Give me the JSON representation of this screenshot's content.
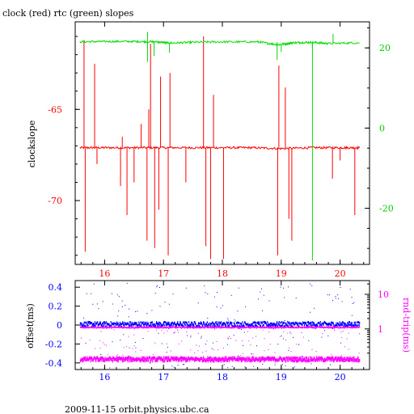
{
  "title": "clock (red) rtc (green) slopes",
  "footer": "2009-11-15  orbit.physics.ubc.ca",
  "colors": {
    "clock": "#ff0000",
    "rtc": "#00dd00",
    "offset": "#0000ff",
    "roundtrip": "#ff00ff",
    "axis": "#000000"
  },
  "chart_data": [
    {
      "type": "line",
      "title": "clock (red) rtc (green) slopes",
      "ylabel": "clockslope",
      "ylim": [
        -73.5,
        -60.2
      ],
      "yticks": [
        -65,
        -70
      ],
      "y2lim": [
        -34,
        26.5
      ],
      "y2ticks": [
        20,
        0,
        -20
      ],
      "xlim": [
        15.5,
        20.5
      ],
      "xticks": [
        16,
        17,
        18,
        19,
        20
      ],
      "grid": false,
      "series": [
        {
          "name": "clock",
          "axis": "left",
          "color": "#ff0000",
          "x": [
            15.58,
            16.0,
            16.5,
            17.0,
            17.5,
            18.0,
            18.5,
            19.0,
            19.5,
            20.0,
            20.33
          ],
          "values": [
            -67.1,
            -67.1,
            -67.1,
            -67.1,
            -67.1,
            -67.1,
            -67.1,
            -67.15,
            -67.1,
            -67.1,
            -67.1
          ],
          "spikes": [
            {
              "x": 15.65,
              "y": -61.2
            },
            {
              "x": 15.67,
              "y": -72.8
            },
            {
              "x": 15.83,
              "y": -62.5
            },
            {
              "x": 15.87,
              "y": -68.0
            },
            {
              "x": 16.27,
              "y": -69.2
            },
            {
              "x": 16.3,
              "y": -66.5
            },
            {
              "x": 16.38,
              "y": -70.8
            },
            {
              "x": 16.5,
              "y": -69.0
            },
            {
              "x": 16.62,
              "y": -65.8
            },
            {
              "x": 16.72,
              "y": -72.2
            },
            {
              "x": 16.75,
              "y": -65.0
            },
            {
              "x": 16.78,
              "y": -61.4
            },
            {
              "x": 16.85,
              "y": -72.6
            },
            {
              "x": 16.92,
              "y": -70.5
            },
            {
              "x": 16.95,
              "y": -63.2
            },
            {
              "x": 17.08,
              "y": -73.0
            },
            {
              "x": 17.11,
              "y": -63.0
            },
            {
              "x": 17.38,
              "y": -69.0
            },
            {
              "x": 17.68,
              "y": -61.0
            },
            {
              "x": 17.72,
              "y": -72.5
            },
            {
              "x": 17.8,
              "y": -73.2
            },
            {
              "x": 17.85,
              "y": -64.2
            },
            {
              "x": 18.02,
              "y": -73.2
            },
            {
              "x": 18.94,
              "y": -73.0
            },
            {
              "x": 18.96,
              "y": -62.6
            },
            {
              "x": 19.07,
              "y": -63.8
            },
            {
              "x": 19.13,
              "y": -71.0
            },
            {
              "x": 19.18,
              "y": -72.2
            },
            {
              "x": 19.87,
              "y": -68.8
            },
            {
              "x": 20.0,
              "y": -67.8
            },
            {
              "x": 20.25,
              "y": -70.8
            }
          ]
        },
        {
          "name": "rtc",
          "axis": "right",
          "color": "#00dd00",
          "x": [
            15.58,
            16.0,
            16.5,
            16.9,
            17.1,
            17.5,
            18.0,
            18.6,
            18.95,
            19.2,
            19.5,
            19.8,
            20.33
          ],
          "values": [
            21.5,
            21.6,
            21.6,
            21.5,
            21.2,
            21.4,
            21.5,
            21.5,
            20.8,
            21.3,
            21.4,
            21.1,
            21.3
          ],
          "spikes": [
            {
              "x": 16.73,
              "y": 24.0
            },
            {
              "x": 16.73,
              "y": 16.5
            },
            {
              "x": 16.84,
              "y": 18.0
            },
            {
              "x": 17.1,
              "y": 18.8
            },
            {
              "x": 18.93,
              "y": 17.0
            },
            {
              "x": 19.0,
              "y": 19.0
            },
            {
              "x": 19.53,
              "y": -33.0
            },
            {
              "x": 19.53,
              "y": 19.8
            },
            {
              "x": 19.88,
              "y": 23.5
            }
          ]
        }
      ]
    },
    {
      "type": "scatter",
      "ylabel": "offset(ms)",
      "y2label": "rnd-trip(ms)",
      "ylim": [
        -0.47,
        0.47
      ],
      "yticks": [
        0.4,
        0.2,
        0,
        -0.2,
        -0.4
      ],
      "y2lim": [
        0.067,
        25
      ],
      "y2scale": "log",
      "y2ticks": [
        10,
        1
      ],
      "xlim": [
        15.5,
        20.5
      ],
      "xticks": [
        16,
        17,
        18,
        19,
        20
      ],
      "series": [
        {
          "name": "offset",
          "color": "#0000ff",
          "axis": "left",
          "x_range": [
            15.58,
            20.33
          ],
          "values_center": 0.01
        },
        {
          "name": "rnd-trip",
          "color": "#ff00ff",
          "axis": "right",
          "x_range": [
            15.58,
            20.33
          ],
          "bands": [
            1.1,
            0.14
          ]
        }
      ]
    }
  ]
}
